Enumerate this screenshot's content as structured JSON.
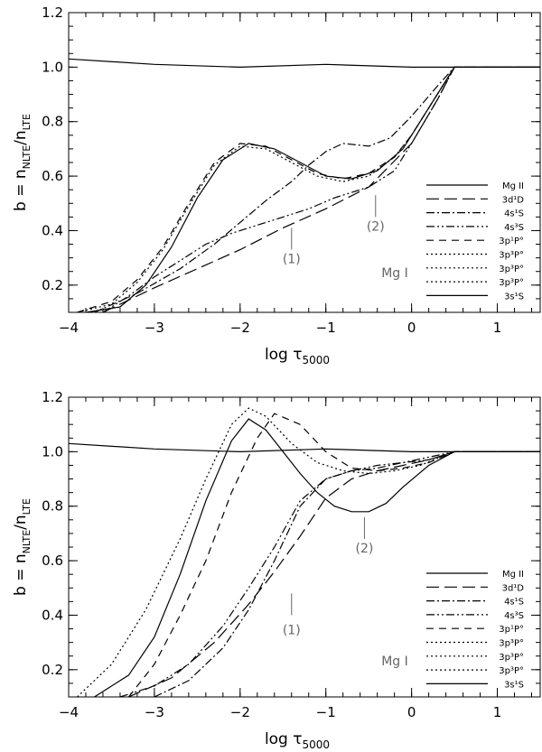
{
  "chart_data": [
    {
      "type": "line",
      "panel": "top",
      "xlabel": "log τ",
      "xlabel_sub": "5000",
      "ylabel": "b = n",
      "ylabel_sub1": "NLTE",
      "ylabel_mid": "/n",
      "ylabel_sub2": "LTE",
      "xlim": [
        -4,
        1.5
      ],
      "ylim": [
        0.1,
        1.2
      ],
      "xticks": [
        -4,
        -3,
        -2,
        -1,
        0,
        1
      ],
      "xtick_labels": [
        "−4",
        "−3",
        "−2",
        "−1",
        "0",
        "1"
      ],
      "yticks": [
        0.2,
        0.4,
        0.6,
        0.8,
        1.0,
        1.2
      ],
      "ytick_labels": [
        "0.2",
        "0.4",
        "0.6",
        "0.8",
        "1.0",
        "1.2"
      ],
      "species_label": "Mg I",
      "annotations": [
        {
          "text": "(1)",
          "x": -1.4,
          "y": 0.28,
          "tick_y": [
            0.33,
            0.41
          ]
        },
        {
          "text": "(2)",
          "x": -0.42,
          "y": 0.4,
          "tick_y": [
            0.45,
            0.53
          ]
        }
      ],
      "legend": [
        "Mg II",
        "3d¹D",
        "4s¹S",
        "4s³S",
        "3p¹P°",
        "3p³P°",
        "3p³P°",
        "3p³P°",
        "3s¹S"
      ],
      "series": [
        {
          "name": "Mg II",
          "dash": "solid",
          "x": [
            -4,
            -3,
            -2,
            -1,
            0,
            0.5,
            1.5
          ],
          "y": [
            1.03,
            1.01,
            1.0,
            1.01,
            1.0,
            1.0,
            1.0
          ]
        },
        {
          "name": "3d¹D",
          "dash": "long",
          "x": [
            -3.6,
            -3,
            -2.5,
            -2,
            -1.5,
            -1,
            -0.5,
            0,
            0.3,
            0.5,
            0.6,
            1.5
          ],
          "y": [
            0.1,
            0.19,
            0.26,
            0.33,
            0.41,
            0.48,
            0.56,
            0.72,
            0.88,
            1.0,
            1.0,
            1.0
          ]
        },
        {
          "name": "4s¹S",
          "dash": "dashdot",
          "x": [
            -3.7,
            -3.2,
            -2.7,
            -2.3,
            -2,
            -1.7,
            -1.4,
            -1.2,
            -1,
            -0.8,
            -0.5,
            -0.25,
            0,
            0.3,
            0.5,
            1.5
          ],
          "y": [
            0.1,
            0.17,
            0.26,
            0.35,
            0.43,
            0.51,
            0.58,
            0.64,
            0.69,
            0.72,
            0.71,
            0.74,
            0.82,
            0.93,
            1.0,
            1.0
          ]
        },
        {
          "name": "4s³S",
          "dash": "dashdotdot",
          "x": [
            -3.6,
            -3.3,
            -3,
            -2.7,
            -2.4,
            -2.1,
            -1.8,
            -1.5,
            -1.2,
            -0.9,
            -0.5,
            -0.2,
            0,
            0.3,
            0.5,
            1.5
          ],
          "y": [
            0.1,
            0.16,
            0.23,
            0.29,
            0.35,
            0.39,
            0.42,
            0.45,
            0.48,
            0.52,
            0.56,
            0.62,
            0.72,
            0.88,
            1.0,
            1.0
          ]
        },
        {
          "name": "3p¹P°",
          "dash": "short",
          "x": [
            -3.9,
            -3.5,
            -3.2,
            -2.9,
            -2.6,
            -2.3,
            -2.0,
            -1.7,
            -1.4,
            -1.1,
            -0.8,
            -0.5,
            -0.2,
            0,
            0.3,
            0.5,
            1.5
          ],
          "y": [
            0.1,
            0.14,
            0.22,
            0.34,
            0.5,
            0.65,
            0.72,
            0.71,
            0.66,
            0.61,
            0.59,
            0.61,
            0.67,
            0.75,
            0.9,
            1.0,
            1.0
          ]
        },
        {
          "name": "3p³P°",
          "dash": "dotted",
          "x": [
            -3.9,
            -3.5,
            -3.2,
            -2.9,
            -2.6,
            -2.3,
            -2.0,
            -1.7,
            -1.4,
            -1.1,
            -0.8,
            -0.5,
            -0.2,
            0,
            0.3,
            0.5,
            1.5
          ],
          "y": [
            0.1,
            0.13,
            0.21,
            0.33,
            0.49,
            0.64,
            0.71,
            0.7,
            0.65,
            0.6,
            0.58,
            0.6,
            0.67,
            0.75,
            0.9,
            1.0,
            1.0
          ]
        },
        {
          "name": "3s¹S",
          "dash": "solid",
          "x": [
            -3.8,
            -3.4,
            -3.1,
            -2.8,
            -2.5,
            -2.2,
            -1.9,
            -1.6,
            -1.3,
            -1.0,
            -0.7,
            -0.4,
            -0.1,
            0.2,
            0.5,
            1.5
          ],
          "y": [
            0.1,
            0.12,
            0.2,
            0.34,
            0.52,
            0.66,
            0.72,
            0.7,
            0.65,
            0.6,
            0.59,
            0.62,
            0.7,
            0.85,
            1.0,
            1.0
          ]
        }
      ]
    },
    {
      "type": "line",
      "panel": "bottom",
      "xlabel": "log τ",
      "xlabel_sub": "5000",
      "ylabel": "b = n",
      "ylabel_sub1": "NLTE",
      "ylabel_mid": "/n",
      "ylabel_sub2": "LTE",
      "xlim": [
        -4,
        1.5
      ],
      "ylim": [
        0.1,
        1.2
      ],
      "xticks": [
        -4,
        -3,
        -2,
        -1,
        0,
        1
      ],
      "xtick_labels": [
        "−4",
        "−3",
        "−2",
        "−1",
        "0",
        "1"
      ],
      "yticks": [
        0.2,
        0.4,
        0.6,
        0.8,
        1.0,
        1.2
      ],
      "ytick_labels": [
        "0.2",
        "0.4",
        "0.6",
        "0.8",
        "1.0",
        "1.2"
      ],
      "species_label": "Mg I",
      "annotations": [
        {
          "text": "(1)",
          "x": -1.4,
          "y": 0.33,
          "tick_y": [
            0.4,
            0.48
          ]
        },
        {
          "text": "(2)",
          "x": -0.55,
          "y": 0.63,
          "tick_y": [
            0.68,
            0.76
          ]
        }
      ],
      "legend": [
        "Mg II",
        "3d¹D",
        "4s¹S",
        "4s³S",
        "3p¹P°",
        "3p³P°",
        "3p³P°",
        "3p³P°",
        "3s¹S"
      ],
      "series": [
        {
          "name": "Mg II",
          "dash": "solid",
          "x": [
            -4,
            -3,
            -2,
            -1,
            0,
            0.5,
            1.5
          ],
          "y": [
            1.03,
            1.01,
            1.0,
            1.01,
            1.0,
            1.0,
            1.0
          ]
        },
        {
          "name": "3d¹D",
          "dash": "long",
          "x": [
            -3.3,
            -2.8,
            -2.3,
            -1.9,
            -1.6,
            -1.3,
            -1.0,
            -0.7,
            -0.4,
            -0.1,
            0.2,
            0.5,
            1.5
          ],
          "y": [
            0.1,
            0.17,
            0.3,
            0.44,
            0.56,
            0.69,
            0.83,
            0.9,
            0.93,
            0.95,
            0.97,
            1.0,
            1.0
          ]
        },
        {
          "name": "4s¹S",
          "dash": "dashdot",
          "x": [
            -3.0,
            -2.6,
            -2.2,
            -1.9,
            -1.6,
            -1.3,
            -1.0,
            -0.7,
            -0.4,
            -0.1,
            0.2,
            0.5,
            1.5
          ],
          "y": [
            0.1,
            0.16,
            0.28,
            0.42,
            0.6,
            0.8,
            0.9,
            0.93,
            0.94,
            0.96,
            0.97,
            1.0,
            1.0
          ]
        },
        {
          "name": "4s³S",
          "dash": "dashdotdot",
          "x": [
            -3.4,
            -3.0,
            -2.6,
            -2.2,
            -1.9,
            -1.6,
            -1.3,
            -1.0,
            -0.7,
            -0.4,
            -0.1,
            0.2,
            0.5,
            1.5
          ],
          "y": [
            0.1,
            0.14,
            0.22,
            0.36,
            0.5,
            0.65,
            0.82,
            0.9,
            0.93,
            0.95,
            0.96,
            0.98,
            1.0,
            1.0
          ]
        },
        {
          "name": "3p¹P°",
          "dash": "short",
          "x": [
            -3.3,
            -3.0,
            -2.7,
            -2.4,
            -2.1,
            -1.8,
            -1.6,
            -1.3,
            -1.0,
            -0.7,
            -0.4,
            -0.1,
            0.2,
            0.5,
            1.5
          ],
          "y": [
            0.1,
            0.22,
            0.4,
            0.6,
            0.85,
            1.05,
            1.14,
            1.1,
            1.0,
            0.94,
            0.93,
            0.94,
            0.96,
            1.0,
            1.0
          ]
        },
        {
          "name": "3p³P°",
          "dash": "dotted",
          "x": [
            -3.9,
            -3.5,
            -3.1,
            -2.7,
            -2.4,
            -2.1,
            -1.9,
            -1.7,
            -1.4,
            -1.1,
            -0.8,
            -0.5,
            -0.2,
            0.1,
            0.5,
            1.5
          ],
          "y": [
            0.1,
            0.22,
            0.42,
            0.68,
            0.9,
            1.1,
            1.16,
            1.13,
            1.03,
            0.96,
            0.93,
            0.92,
            0.93,
            0.95,
            1.0,
            1.0
          ]
        },
        {
          "name": "3s¹S",
          "dash": "solid-thin",
          "x": [
            -3.7,
            -3.3,
            -3.0,
            -2.7,
            -2.4,
            -2.1,
            -1.9,
            -1.7,
            -1.5,
            -1.3,
            -1.1,
            -0.9,
            -0.7,
            -0.5,
            -0.3,
            -0.1,
            0.2,
            0.5,
            1.5
          ],
          "y": [
            0.1,
            0.18,
            0.32,
            0.55,
            0.82,
            1.04,
            1.12,
            1.08,
            1.0,
            0.92,
            0.85,
            0.8,
            0.78,
            0.78,
            0.81,
            0.87,
            0.95,
            1.0,
            1.0
          ]
        }
      ]
    }
  ]
}
